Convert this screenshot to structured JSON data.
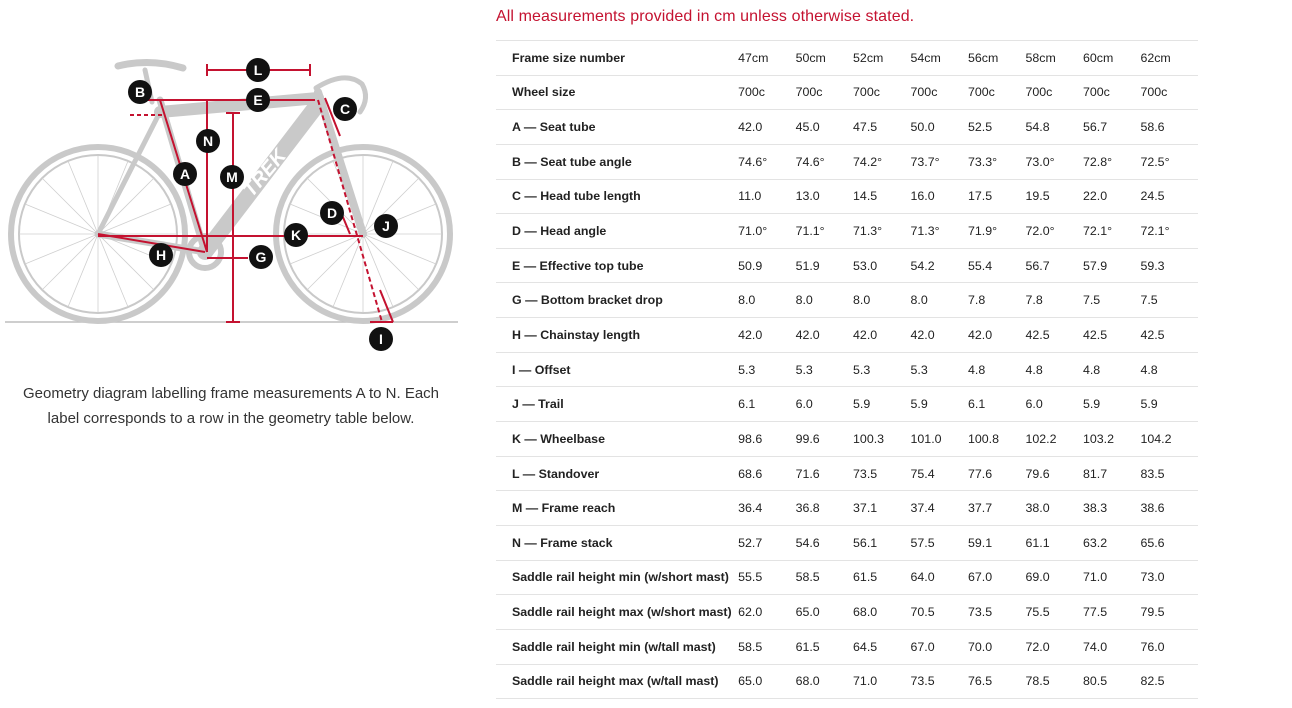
{
  "notice": "All measurements provided in cm unless otherwise stated.",
  "caption": "Geometry diagram labelling frame measurements A to N. Each label corresponds to a row in the geometry table below.",
  "diagram": {
    "labels": [
      "A",
      "B",
      "C",
      "D",
      "E",
      "G",
      "H",
      "I",
      "J",
      "K",
      "L",
      "M",
      "N"
    ],
    "brand_text": "TREK",
    "accent_color": "#c41230",
    "bike_color": "#c9c9c9",
    "marker_color": "#111111"
  },
  "table": {
    "rows": [
      {
        "label": "Frame size number",
        "values": [
          "47cm",
          "50cm",
          "52cm",
          "54cm",
          "56cm",
          "58cm",
          "60cm",
          "62cm"
        ]
      },
      {
        "label": "Wheel size",
        "values": [
          "700c",
          "700c",
          "700c",
          "700c",
          "700c",
          "700c",
          "700c",
          "700c"
        ]
      },
      {
        "label": "A — Seat tube",
        "values": [
          "42.0",
          "45.0",
          "47.5",
          "50.0",
          "52.5",
          "54.8",
          "56.7",
          "58.6"
        ]
      },
      {
        "label": "B — Seat tube angle",
        "values": [
          "74.6°",
          "74.6°",
          "74.2°",
          "73.7°",
          "73.3°",
          "73.0°",
          "72.8°",
          "72.5°"
        ]
      },
      {
        "label": "C — Head tube length",
        "values": [
          "11.0",
          "13.0",
          "14.5",
          "16.0",
          "17.5",
          "19.5",
          "22.0",
          "24.5"
        ]
      },
      {
        "label": "D — Head angle",
        "values": [
          "71.0°",
          "71.1°",
          "71.3°",
          "71.3°",
          "71.9°",
          "72.0°",
          "72.1°",
          "72.1°"
        ]
      },
      {
        "label": "E — Effective top tube",
        "values": [
          "50.9",
          "51.9",
          "53.0",
          "54.2",
          "55.4",
          "56.7",
          "57.9",
          "59.3"
        ]
      },
      {
        "label": "G — Bottom bracket drop",
        "values": [
          "8.0",
          "8.0",
          "8.0",
          "8.0",
          "7.8",
          "7.8",
          "7.5",
          "7.5"
        ]
      },
      {
        "label": "H — Chainstay length",
        "values": [
          "42.0",
          "42.0",
          "42.0",
          "42.0",
          "42.0",
          "42.5",
          "42.5",
          "42.5"
        ]
      },
      {
        "label": "I — Offset",
        "values": [
          "5.3",
          "5.3",
          "5.3",
          "5.3",
          "4.8",
          "4.8",
          "4.8",
          "4.8"
        ]
      },
      {
        "label": "J — Trail",
        "values": [
          "6.1",
          "6.0",
          "5.9",
          "5.9",
          "6.1",
          "6.0",
          "5.9",
          "5.9"
        ]
      },
      {
        "label": "K — Wheelbase",
        "values": [
          "98.6",
          "99.6",
          "100.3",
          "101.0",
          "100.8",
          "102.2",
          "103.2",
          "104.2"
        ]
      },
      {
        "label": "L — Standover",
        "values": [
          "68.6",
          "71.6",
          "73.5",
          "75.4",
          "77.6",
          "79.6",
          "81.7",
          "83.5"
        ]
      },
      {
        "label": "M — Frame reach",
        "values": [
          "36.4",
          "36.8",
          "37.1",
          "37.4",
          "37.7",
          "38.0",
          "38.3",
          "38.6"
        ]
      },
      {
        "label": "N — Frame stack",
        "values": [
          "52.7",
          "54.6",
          "56.1",
          "57.5",
          "59.1",
          "61.1",
          "63.2",
          "65.6"
        ]
      },
      {
        "label": "Saddle rail height min (w/short mast)",
        "values": [
          "55.5",
          "58.5",
          "61.5",
          "64.0",
          "67.0",
          "69.0",
          "71.0",
          "73.0"
        ]
      },
      {
        "label": "Saddle rail height max (w/short mast)",
        "values": [
          "62.0",
          "65.0",
          "68.0",
          "70.5",
          "73.5",
          "75.5",
          "77.5",
          "79.5"
        ]
      },
      {
        "label": "Saddle rail height min (w/tall mast)",
        "values": [
          "58.5",
          "61.5",
          "64.5",
          "67.0",
          "70.0",
          "72.0",
          "74.0",
          "76.0"
        ]
      },
      {
        "label": "Saddle rail height max (w/tall mast)",
        "values": [
          "65.0",
          "68.0",
          "71.0",
          "73.5",
          "76.5",
          "78.5",
          "80.5",
          "82.5"
        ]
      }
    ]
  }
}
